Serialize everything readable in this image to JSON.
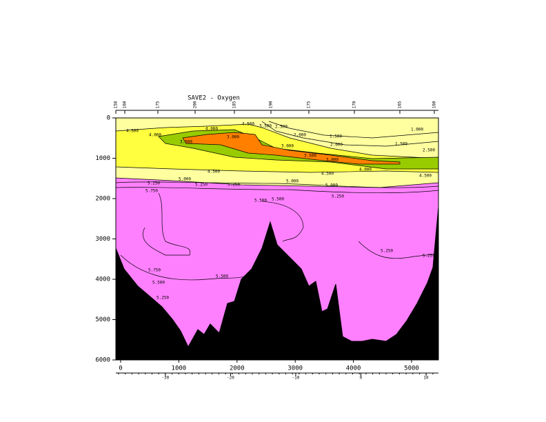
{
  "chart_data": {
    "type": "section",
    "title": "SAVE2 - Oxygen",
    "stations": [
      "158",
      "160",
      "175",
      "200",
      "185",
      "190",
      "175",
      "170",
      "165",
      "160"
    ],
    "xlim": [
      -83,
      5462
    ],
    "xticks": [
      0,
      1000,
      2000,
      3000,
      4000,
      5000
    ],
    "ylim": [
      0,
      6000
    ],
    "yticks": [
      0,
      1000,
      2000,
      3000,
      4000,
      5000,
      6000
    ],
    "y_inverted": true,
    "x2lim": [
      -37.6,
      11.9
    ],
    "x2ticks": [
      -30,
      -20,
      -10,
      0,
      10
    ],
    "contour_labels": [
      "4.500",
      "4.000",
      "3.500",
      "4.000",
      "3.000",
      "4.500",
      "3.500",
      "2.500",
      "2.000",
      "1.500",
      "1.000",
      "3.000",
      "2.000",
      "1.500",
      "2.500",
      "3.500",
      "3.000",
      "4.000",
      "4.500",
      "4.500",
      "4.500",
      "5.000",
      "5.000",
      "5.000",
      "5.250",
      "5.250",
      "5.250",
      "5.750",
      "5.500",
      "5.500",
      "5.250",
      "5.250",
      "5.250",
      "5.750",
      "5.500",
      "5.500",
      "5.250"
    ],
    "bathymetry": {
      "x": [
        -83,
        59,
        296,
        533,
        711,
        889,
        1031,
        1161,
        1327,
        1434,
        1540,
        1694,
        1836,
        1955,
        2073,
        2251,
        2429,
        2571,
        2690,
        2808,
        2962,
        3104,
        3235,
        3353,
        3460,
        3555,
        3697,
        3815,
        3969,
        4147,
        4325,
        4562,
        4739,
        4917,
        5095,
        5273,
        5367,
        5462
      ],
      "depth": [
        3231,
        3744,
        4171,
        4462,
        4684,
        4991,
        5282,
        5675,
        5248,
        5368,
        5111,
        5333,
        4598,
        4547,
        4000,
        3744,
        3231,
        2581,
        3145,
        3316,
        3538,
        3744,
        4171,
        4051,
        4803,
        4735,
        4120,
        5419,
        5538,
        5538,
        5487,
        5538,
        5368,
        5026,
        4598,
        4085,
        3709,
        2205
      ],
      "color": "#000000"
    }
  }
}
